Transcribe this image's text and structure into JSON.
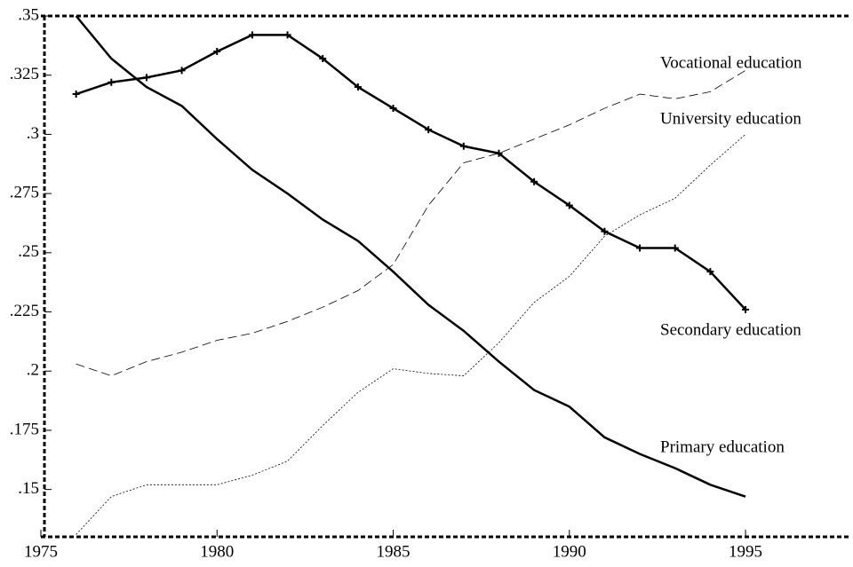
{
  "chart_data": {
    "type": "line",
    "x": [
      1976,
      1977,
      1978,
      1979,
      1980,
      1981,
      1982,
      1983,
      1984,
      1985,
      1986,
      1987,
      1988,
      1989,
      1990,
      1991,
      1992,
      1993,
      1994,
      1995
    ],
    "series": [
      {
        "name": "Secondary education",
        "color": "#000000",
        "style": "solid",
        "width": 2.5,
        "markers": true,
        "values": [
          0.317,
          0.322,
          0.324,
          0.327,
          0.335,
          0.342,
          0.342,
          0.332,
          0.32,
          0.311,
          0.302,
          0.295,
          0.292,
          0.28,
          0.27,
          0.259,
          0.252,
          0.252,
          0.242,
          0.226
        ]
      },
      {
        "name": "Primary education",
        "color": "#000000",
        "style": "solid",
        "width": 2.5,
        "markers": false,
        "values": [
          0.35,
          0.332,
          0.32,
          0.312,
          0.298,
          0.285,
          0.275,
          0.264,
          0.255,
          0.242,
          0.228,
          0.217,
          0.204,
          0.192,
          0.185,
          0.172,
          0.165,
          0.159,
          0.152,
          0.147
        ]
      },
      {
        "name": "Vocational education",
        "color": "#000000",
        "style": "dashed",
        "width": 0.8,
        "markers": false,
        "values": [
          0.203,
          0.198,
          0.204,
          0.208,
          0.213,
          0.216,
          0.221,
          0.227,
          0.234,
          0.245,
          0.27,
          0.288,
          0.292,
          0.298,
          0.304,
          0.311,
          0.317,
          0.315,
          0.318,
          0.327
        ]
      },
      {
        "name": "University education",
        "color": "#000000",
        "style": "dotted",
        "width": 0.8,
        "markers": false,
        "values": [
          0.131,
          0.147,
          0.152,
          0.152,
          0.152,
          0.156,
          0.162,
          0.177,
          0.191,
          0.201,
          0.199,
          0.198,
          0.212,
          0.229,
          0.24,
          0.257,
          0.266,
          0.273,
          0.287,
          0.3
        ]
      }
    ],
    "xlim": [
      1975,
      1998
    ],
    "xticks": [
      1975,
      1980,
      1985,
      1990,
      1995
    ],
    "ylim": [
      0.13,
      0.35
    ],
    "yticks": [
      {
        "value": 0.15,
        "label": ".15"
      },
      {
        "value": 0.175,
        "label": ".175"
      },
      {
        "value": 0.2,
        "label": ".2"
      },
      {
        "value": 0.225,
        "label": ".225"
      },
      {
        "value": 0.25,
        "label": ".25"
      },
      {
        "value": 0.275,
        "label": ".275"
      },
      {
        "value": 0.3,
        "label": ".3"
      },
      {
        "value": 0.325,
        "label": ".325"
      },
      {
        "value": 0.35,
        "label": ".35"
      }
    ],
    "grid": false
  }
}
